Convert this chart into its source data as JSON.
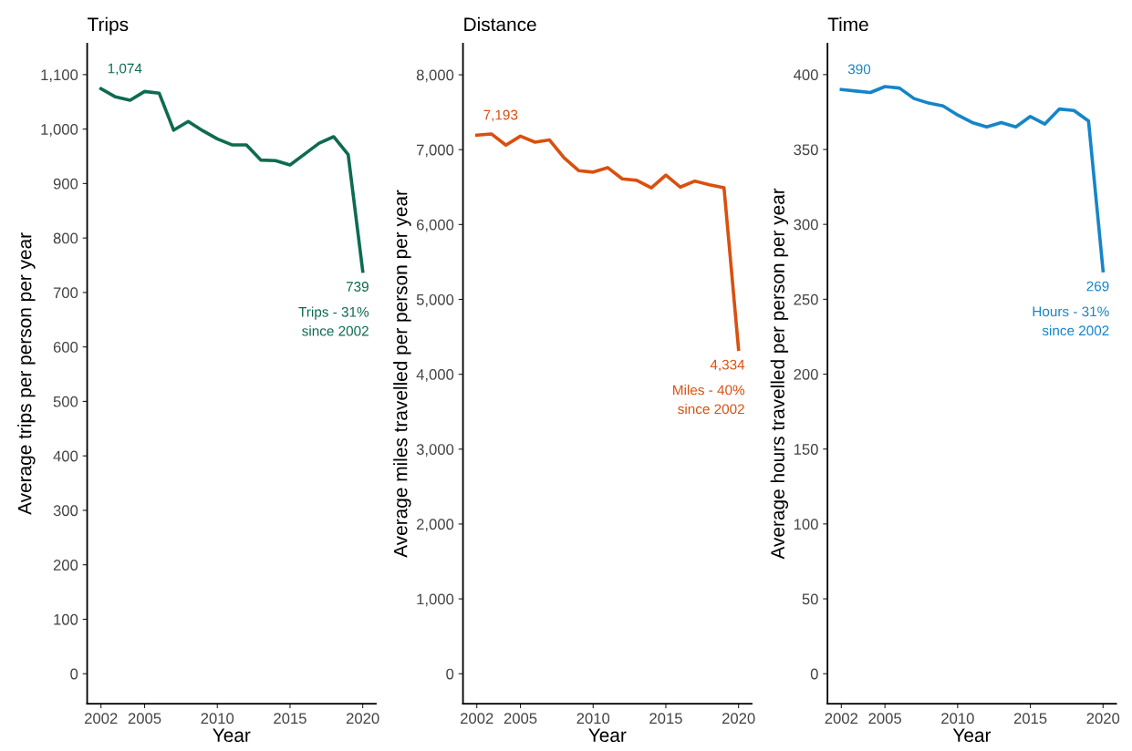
{
  "chart_data": [
    {
      "type": "line",
      "title": "Trips",
      "xlabel": "Year",
      "ylabel": "Average trips per person per year",
      "x": [
        2002,
        2003,
        2004,
        2005,
        2006,
        2007,
        2008,
        2009,
        2010,
        2011,
        2012,
        2013,
        2014,
        2015,
        2016,
        2017,
        2018,
        2019,
        2020
      ],
      "series": [
        {
          "color": "#0d6b50",
          "values": [
            1074,
            1059,
            1053,
            1069,
            1066,
            998,
            1014,
            997,
            982,
            971,
            971,
            943,
            942,
            934,
            954,
            974,
            986,
            953,
            739
          ]
        }
      ],
      "xlim": [
        2001.05,
        2020.9
      ],
      "xticks": [
        2002,
        2005,
        2010,
        2015,
        2020
      ],
      "ylim": [
        -55,
        1157
      ],
      "yticks": [
        0,
        100,
        200,
        300,
        400,
        500,
        600,
        700,
        800,
        900,
        {
          "value": 1000,
          "label": "1,000"
        },
        {
          "value": 1100,
          "label": "1,100"
        }
      ],
      "annotations": [
        "1,074",
        "739",
        "Trips - 31%\nsince 2002"
      ],
      "grid": false,
      "legend": false,
      "line_style": "solid",
      "marker": "none"
    },
    {
      "type": "line",
      "title": "Distance",
      "xlabel": "Year",
      "ylabel": "Average miles travelled per person per year",
      "x": [
        2002,
        2003,
        2004,
        2005,
        2006,
        2007,
        2008,
        2009,
        2010,
        2011,
        2012,
        2013,
        2014,
        2015,
        2016,
        2017,
        2018,
        2019,
        2020
      ],
      "series": [
        {
          "color": "#d9500f",
          "values": [
            7193,
            7210,
            7060,
            7180,
            7100,
            7130,
            6890,
            6720,
            6700,
            6760,
            6610,
            6590,
            6490,
            6660,
            6500,
            6580,
            6530,
            6490,
            4334
          ]
        }
      ],
      "xlim": [
        2001.05,
        2020.9
      ],
      "xticks": [
        2002,
        2005,
        2010,
        2015,
        2020
      ],
      "ylim": [
        -400,
        8417
      ],
      "yticks": [
        0,
        {
          "value": 1000,
          "label": "1,000"
        },
        {
          "value": 2000,
          "label": "2,000"
        },
        {
          "value": 3000,
          "label": "3,000"
        },
        {
          "value": 4000,
          "label": "4,000"
        },
        {
          "value": 5000,
          "label": "5,000"
        },
        {
          "value": 6000,
          "label": "6,000"
        },
        {
          "value": 7000,
          "label": "7,000"
        },
        {
          "value": 8000,
          "label": "8,000"
        }
      ],
      "annotations": [
        "7,193",
        "4,334",
        "Miles - 40%\nsince 2002"
      ],
      "grid": false,
      "legend": false,
      "line_style": "solid",
      "marker": "none"
    },
    {
      "type": "line",
      "title": "Time",
      "xlabel": "Year",
      "ylabel": "Average hours travelled per person per year",
      "x": [
        2002,
        2003,
        2004,
        2005,
        2006,
        2007,
        2008,
        2009,
        2010,
        2011,
        2012,
        2013,
        2014,
        2015,
        2016,
        2017,
        2018,
        2019,
        2020
      ],
      "series": [
        {
          "color": "#1585c9",
          "values": [
            390,
            389,
            388,
            392,
            391,
            384,
            381,
            379,
            373,
            368,
            365,
            368,
            365,
            372,
            367,
            377,
            376,
            369,
            269
          ]
        }
      ],
      "xlim": [
        2001.05,
        2020.9
      ],
      "xticks": [
        2002,
        2005,
        2010,
        2015,
        2020
      ],
      "ylim": [
        -20,
        420.7
      ],
      "yticks": [
        0,
        50,
        100,
        150,
        200,
        250,
        300,
        350,
        400
      ],
      "annotations": [
        "390",
        "269",
        "Hours - 31%\nsince 2002"
      ],
      "grid": false,
      "legend": false,
      "line_style": "solid",
      "marker": "none"
    }
  ]
}
